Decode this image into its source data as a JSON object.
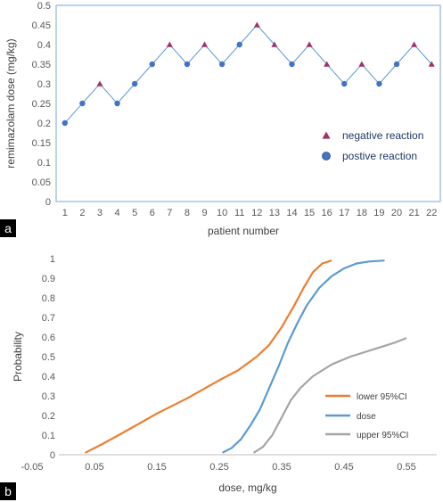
{
  "chart_data": [
    {
      "panel": "a",
      "type": "scatter",
      "title": "",
      "xlabel": "patient number",
      "ylabel": "remimazolam dose (mg/kg)",
      "xlim": [
        0.5,
        22.5
      ],
      "ylim": [
        0,
        0.5
      ],
      "x_ticks": [
        "1",
        "2",
        "3",
        "4",
        "5",
        "6",
        "7",
        "8",
        "9",
        "10",
        "11",
        "12",
        "13",
        "14",
        "15",
        "16",
        "17",
        "18",
        "19",
        "20",
        "21",
        "22"
      ],
      "y_ticks": [
        "0",
        "0.05",
        "0.1",
        "0.15",
        "0.2",
        "0.25",
        "0.3",
        "0.35",
        "0.4",
        "0.45",
        "0.5"
      ],
      "line_color": "#5b9bd5",
      "x": [
        1,
        2,
        3,
        4,
        5,
        6,
        7,
        8,
        9,
        10,
        11,
        12,
        13,
        14,
        15,
        16,
        17,
        18,
        19,
        20,
        21,
        22
      ],
      "y": [
        0.2,
        0.25,
        0.3,
        0.25,
        0.3,
        0.35,
        0.4,
        0.35,
        0.4,
        0.35,
        0.4,
        0.45,
        0.4,
        0.35,
        0.4,
        0.35,
        0.3,
        0.35,
        0.3,
        0.35,
        0.4,
        0.35
      ],
      "reaction": [
        "positive",
        "positive",
        "negative",
        "positive",
        "positive",
        "positive",
        "negative",
        "positive",
        "negative",
        "positive",
        "positive",
        "negative",
        "negative",
        "positive",
        "negative",
        "negative",
        "positive",
        "negative",
        "positive",
        "positive",
        "negative",
        "negative"
      ],
      "series": [
        {
          "name": "negative reaction",
          "marker": "triangle",
          "color": "#a0306a"
        },
        {
          "name": "postive reaction",
          "marker": "circle",
          "color": "#4472c4"
        }
      ],
      "legend_placement": "lower-right",
      "grid": false
    },
    {
      "panel": "b",
      "type": "line",
      "title": "",
      "xlabel": "dose, mg/kg",
      "ylabel": "Probability",
      "xlim": [
        -0.05,
        0.55
      ],
      "ylim": [
        0,
        1
      ],
      "x_ticks": [
        "-0.05",
        "0.05",
        "0.15",
        "0.25",
        "0.35",
        "0.45",
        "0.55"
      ],
      "y_ticks": [
        "0",
        "0.1",
        "0.2",
        "0.3",
        "0.4",
        "0.5",
        "0.6",
        "0.7",
        "0.8",
        "0.9",
        "1"
      ],
      "series": [
        {
          "name": "lower  95%CI",
          "color": "#ed7d31",
          "x": [
            0.035,
            0.06,
            0.1,
            0.15,
            0.2,
            0.25,
            0.28,
            0.31,
            0.33,
            0.35,
            0.37,
            0.385,
            0.4,
            0.415,
            0.43
          ],
          "y": [
            0.01,
            0.05,
            0.12,
            0.21,
            0.29,
            0.38,
            0.43,
            0.5,
            0.56,
            0.65,
            0.76,
            0.85,
            0.93,
            0.975,
            0.99
          ]
        },
        {
          "name": "dose",
          "color": "#5b9bd5",
          "x": [
            0.255,
            0.27,
            0.285,
            0.3,
            0.315,
            0.33,
            0.345,
            0.36,
            0.375,
            0.39,
            0.41,
            0.43,
            0.45,
            0.47,
            0.49,
            0.515
          ],
          "y": [
            0.01,
            0.035,
            0.08,
            0.15,
            0.23,
            0.34,
            0.45,
            0.57,
            0.67,
            0.76,
            0.85,
            0.91,
            0.95,
            0.975,
            0.985,
            0.99
          ]
        },
        {
          "name": "upper  95%CI",
          "color": "#a5a5a5",
          "x": [
            0.305,
            0.32,
            0.335,
            0.35,
            0.365,
            0.38,
            0.4,
            0.43,
            0.46,
            0.5,
            0.53,
            0.55
          ],
          "y": [
            0.01,
            0.04,
            0.1,
            0.19,
            0.28,
            0.34,
            0.4,
            0.46,
            0.5,
            0.54,
            0.57,
            0.595
          ]
        }
      ],
      "legend_placement": "lower-right",
      "grid": false
    }
  ],
  "panel_labels": [
    "a",
    "b"
  ]
}
